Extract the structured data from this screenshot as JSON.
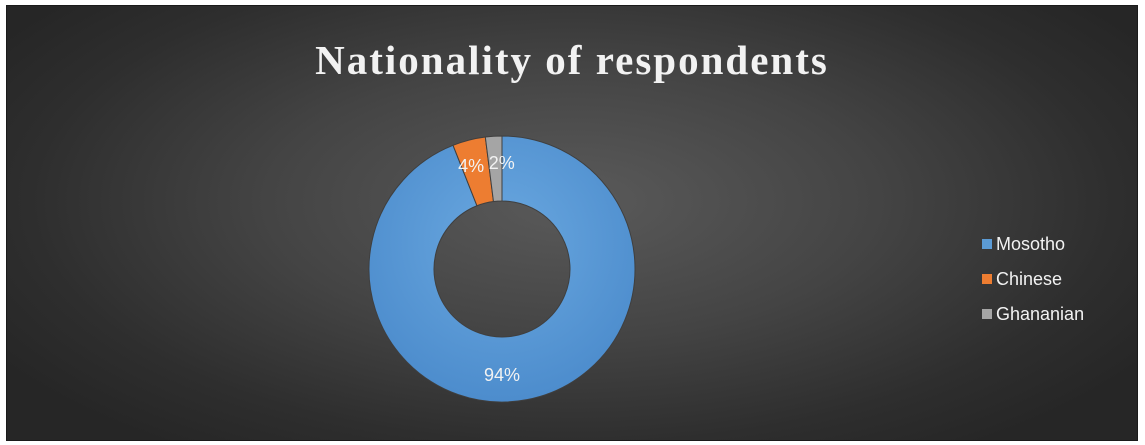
{
  "chart_data": {
    "type": "pie",
    "variant": "donut",
    "title": "Nationality of respondents",
    "series": [
      {
        "name": "Mosotho",
        "value": 94,
        "label": "94%",
        "color": "#5b9bd5"
      },
      {
        "name": "Chinese",
        "value": 4,
        "label": "4%",
        "color": "#ed7d31"
      },
      {
        "name": "Ghananian",
        "value": 2,
        "label": "2%",
        "color": "#a5a5a5"
      }
    ],
    "legend_position": "right",
    "background": "#404040",
    "text_color": "#f2f2f2"
  }
}
